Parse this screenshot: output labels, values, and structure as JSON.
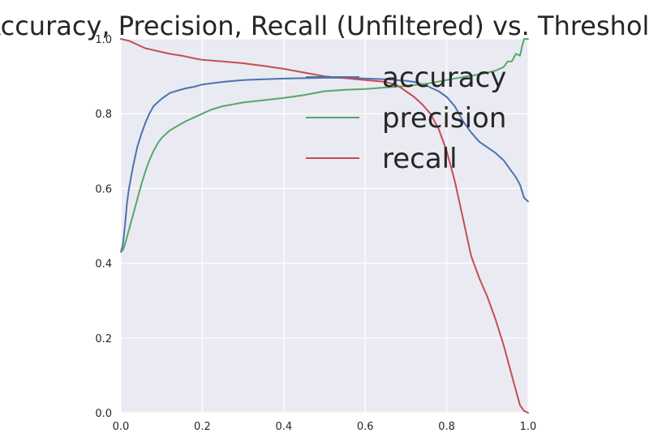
{
  "chart_data": {
    "type": "line",
    "title": "Accuracy, Precision, Recall (Unfiltered) vs. Threshold",
    "xlabel": "",
    "ylabel": "",
    "xlim": [
      0.0,
      1.0
    ],
    "ylim": [
      0.0,
      1.0
    ],
    "xticks": [
      "0.0",
      "0.2",
      "0.4",
      "0.6",
      "0.8",
      "1.0"
    ],
    "yticks": [
      "0.0",
      "0.2",
      "0.4",
      "0.6",
      "0.8",
      "1.0"
    ],
    "grid": true,
    "legend_position": "top-right",
    "series": [
      {
        "name": "accuracy",
        "color": "#4c72b0",
        "x": [
          0.0,
          0.005,
          0.01,
          0.015,
          0.02,
          0.03,
          0.04,
          0.05,
          0.06,
          0.07,
          0.08,
          0.09,
          0.1,
          0.12,
          0.14,
          0.16,
          0.18,
          0.2,
          0.25,
          0.3,
          0.35,
          0.4,
          0.45,
          0.5,
          0.55,
          0.6,
          0.65,
          0.7,
          0.72,
          0.75,
          0.78,
          0.8,
          0.82,
          0.84,
          0.86,
          0.88,
          0.9,
          0.92,
          0.94,
          0.96,
          0.97,
          0.98,
          0.99,
          1.0
        ],
        "values": [
          0.43,
          0.45,
          0.5,
          0.56,
          0.6,
          0.66,
          0.71,
          0.745,
          0.775,
          0.8,
          0.82,
          0.83,
          0.84,
          0.855,
          0.862,
          0.868,
          0.872,
          0.878,
          0.885,
          0.89,
          0.892,
          0.894,
          0.895,
          0.896,
          0.896,
          0.894,
          0.892,
          0.888,
          0.885,
          0.875,
          0.86,
          0.845,
          0.82,
          0.78,
          0.75,
          0.725,
          0.71,
          0.695,
          0.675,
          0.645,
          0.63,
          0.61,
          0.575,
          0.565
        ]
      },
      {
        "name": "precision",
        "color": "#55a868",
        "x": [
          0.0,
          0.005,
          0.01,
          0.02,
          0.03,
          0.04,
          0.05,
          0.06,
          0.07,
          0.08,
          0.09,
          0.1,
          0.12,
          0.14,
          0.16,
          0.18,
          0.2,
          0.22,
          0.25,
          0.3,
          0.35,
          0.4,
          0.45,
          0.5,
          0.55,
          0.6,
          0.65,
          0.7,
          0.75,
          0.8,
          0.85,
          0.88,
          0.9,
          0.92,
          0.94,
          0.95,
          0.96,
          0.97,
          0.98,
          0.985,
          0.99,
          1.0
        ],
        "values": [
          0.43,
          0.435,
          0.45,
          0.49,
          0.53,
          0.57,
          0.61,
          0.645,
          0.675,
          0.7,
          0.72,
          0.735,
          0.755,
          0.768,
          0.78,
          0.79,
          0.8,
          0.81,
          0.82,
          0.83,
          0.836,
          0.842,
          0.85,
          0.86,
          0.864,
          0.866,
          0.87,
          0.874,
          0.88,
          0.89,
          0.9,
          0.905,
          0.91,
          0.915,
          0.925,
          0.94,
          0.94,
          0.96,
          0.955,
          0.98,
          1.0,
          1.0
        ]
      },
      {
        "name": "recall",
        "color": "#c44e52",
        "x": [
          0.0,
          0.02,
          0.04,
          0.06,
          0.08,
          0.1,
          0.12,
          0.15,
          0.18,
          0.2,
          0.25,
          0.3,
          0.35,
          0.4,
          0.45,
          0.5,
          0.55,
          0.6,
          0.65,
          0.68,
          0.7,
          0.72,
          0.74,
          0.76,
          0.78,
          0.8,
          0.82,
          0.84,
          0.85,
          0.86,
          0.87,
          0.88,
          0.9,
          0.92,
          0.94,
          0.95,
          0.96,
          0.97,
          0.98,
          0.99,
          1.0
        ],
        "values": [
          1.0,
          0.995,
          0.985,
          0.975,
          0.97,
          0.965,
          0.96,
          0.955,
          0.948,
          0.944,
          0.94,
          0.935,
          0.928,
          0.92,
          0.91,
          0.9,
          0.895,
          0.89,
          0.885,
          0.875,
          0.86,
          0.845,
          0.825,
          0.8,
          0.76,
          0.7,
          0.62,
          0.52,
          0.47,
          0.42,
          0.39,
          0.36,
          0.31,
          0.25,
          0.18,
          0.14,
          0.1,
          0.06,
          0.02,
          0.005,
          0.0
        ]
      }
    ]
  }
}
